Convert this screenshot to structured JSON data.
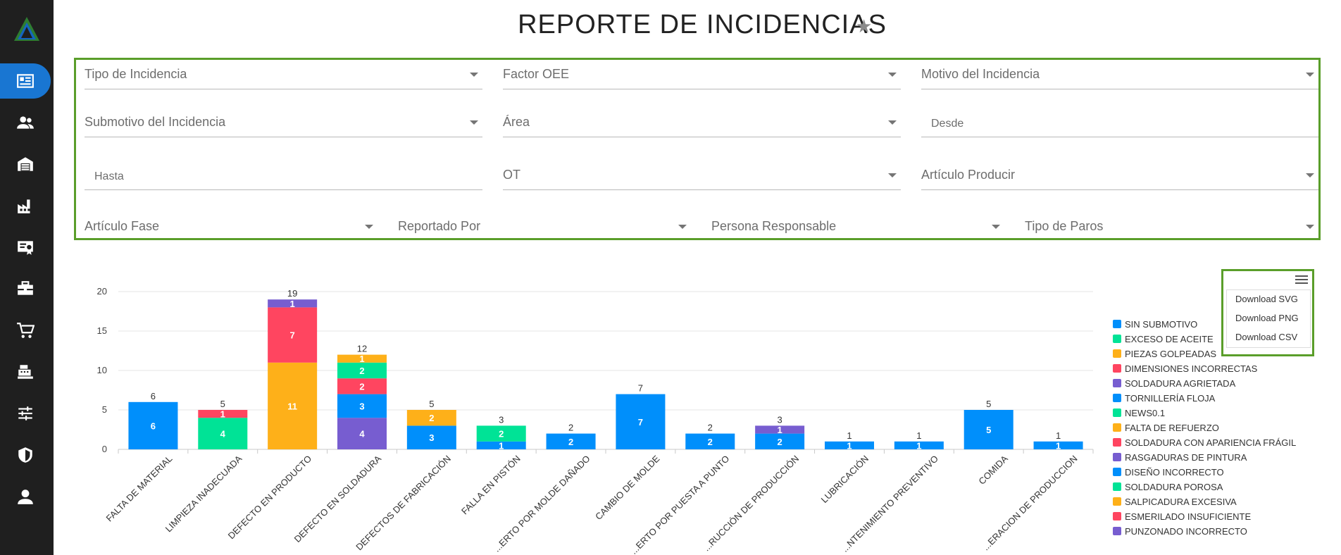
{
  "page": {
    "title": "REPORTE DE INCIDENCIAS"
  },
  "filters": {
    "tipo_incidencia": "Tipo de Incidencia",
    "factor_oee": "Factor OEE",
    "motivo": "Motivo del Incidencia",
    "submotivo": "Submotivo del Incidencia",
    "area": "Área",
    "desde": "Desde",
    "hasta": "Hasta",
    "ot": "OT",
    "articulo_producir": "Artículo Producir",
    "articulo_fase": "Artículo Fase",
    "reportado_por": "Reportado Por",
    "persona_responsable": "Persona Responsable",
    "tipo_paros": "Tipo de Paros"
  },
  "menu": {
    "download_svg": "Download SVG",
    "download_png": "Download PNG",
    "download_csv": "Download CSV"
  },
  "colors": {
    "accent": "#1976d2",
    "highlight_border": "#5a9e2a",
    "sidebar": "#1f1f1f"
  },
  "sidebar": {
    "icons": [
      "dashboard-icon",
      "people-icon",
      "warehouse-icon",
      "factory-icon",
      "certificate-icon",
      "toolbox-icon",
      "cart-icon",
      "cash-register-icon",
      "sliders-icon",
      "shield-icon",
      "person-icon"
    ]
  },
  "chart_data": {
    "type": "bar",
    "stacked": true,
    "ylim": [
      0,
      20
    ],
    "yticks": [
      0,
      5,
      10,
      15,
      20
    ],
    "grid": true,
    "legend_position": "right",
    "categories": [
      "FALTA DE MATERIAL",
      "LIMPIEZA INADECUADA",
      "DEFECTO EN PRODUCTO",
      "DEFECTO EN SOLDADURA",
      "DEFECTOS DE FABRICACIÓN",
      "FALLA EN PISTÓN",
      "...ERTO POR MOLDE DAÑADO",
      "CAMBIO DE MOLDE",
      "...ERTO POR PUESTA A PUNTO",
      "...RUCCIÓN DE PRODUCCIÓN",
      "LUBRICACIÓN",
      "...NTENIMIENTO PREVENTIVO",
      "COMIDA",
      "...ERACION DE PRODUCCION"
    ],
    "totals": [
      6,
      5,
      19,
      12,
      5,
      3,
      2,
      7,
      2,
      3,
      1,
      1,
      5,
      1
    ],
    "series": [
      {
        "name": "SIN SUBMOTIVO",
        "color": "#008ffb",
        "values": [
          6,
          0,
          0,
          0,
          0,
          0,
          0,
          0,
          0,
          0,
          0,
          0,
          0,
          0
        ]
      },
      {
        "name": "EXCESO DE ACEITE",
        "color": "#00e396",
        "values": [
          0,
          4,
          0,
          0,
          0,
          0,
          0,
          0,
          0,
          0,
          0,
          0,
          0,
          0
        ]
      },
      {
        "name": "PIEZAS GOLPEADAS",
        "color": "#feb019",
        "values": [
          0,
          0,
          11,
          0,
          0,
          0,
          0,
          0,
          0,
          0,
          0,
          0,
          0,
          0
        ]
      },
      {
        "name": "DIMENSIONES INCORRECTAS",
        "color": "#ff4560",
        "values": [
          0,
          1,
          7,
          0,
          0,
          0,
          0,
          0,
          0,
          0,
          0,
          0,
          0,
          0
        ]
      },
      {
        "name": "SOLDADURA AGRIETADA",
        "color": "#775dd0",
        "values": [
          0,
          0,
          1,
          4,
          0,
          0,
          0,
          0,
          0,
          0,
          0,
          0,
          0,
          0
        ]
      },
      {
        "name": "TORNILLERÍA FLOJA",
        "color": "#008ffb",
        "values": [
          0,
          0,
          0,
          3,
          3,
          1,
          2,
          7,
          2,
          2,
          1,
          1,
          5,
          1
        ]
      },
      {
        "name": "NEWS0.1",
        "color": "#00e396",
        "values": [
          0,
          0,
          0,
          0,
          0,
          2,
          0,
          0,
          0,
          0,
          0,
          0,
          0,
          0
        ]
      },
      {
        "name": "FALTA DE REFUERZO",
        "color": "#feb019",
        "values": [
          0,
          0,
          0,
          0,
          2,
          0,
          0,
          0,
          0,
          0,
          0,
          0,
          0,
          0
        ]
      },
      {
        "name": "SOLDADURA CON APARIENCIA FRÁGIL",
        "color": "#ff4560",
        "values": [
          0,
          0,
          0,
          2,
          0,
          0,
          0,
          0,
          0,
          0,
          0,
          0,
          0,
          0
        ]
      },
      {
        "name": "RASGADURAS DE PINTURA",
        "color": "#775dd0",
        "values": [
          0,
          0,
          0,
          0,
          0,
          0,
          0,
          0,
          0,
          1,
          0,
          0,
          0,
          0
        ]
      },
      {
        "name": "DISEÑO INCORRECTO",
        "color": "#008ffb",
        "values": [
          0,
          0,
          0,
          0,
          0,
          0,
          0,
          0,
          0,
          0,
          0,
          0,
          0,
          0
        ]
      },
      {
        "name": "SOLDADURA POROSA",
        "color": "#00e396",
        "values": [
          0,
          0,
          0,
          2,
          0,
          0,
          0,
          0,
          0,
          0,
          0,
          0,
          0,
          0
        ]
      },
      {
        "name": "SALPICADURA EXCESIVA",
        "color": "#feb019",
        "values": [
          0,
          0,
          0,
          1,
          0,
          0,
          0,
          0,
          0,
          0,
          0,
          0,
          0,
          0
        ]
      },
      {
        "name": "ESMERILADO INSUFICIENTE",
        "color": "#ff4560",
        "values": [
          0,
          0,
          0,
          0,
          0,
          0,
          0,
          0,
          0,
          0,
          0,
          0,
          0,
          0
        ]
      },
      {
        "name": "PUNZONADO INCORRECTO",
        "color": "#775dd0",
        "values": [
          0,
          0,
          0,
          0,
          0,
          0,
          0,
          0,
          0,
          0,
          0,
          0,
          0,
          0
        ]
      }
    ]
  }
}
